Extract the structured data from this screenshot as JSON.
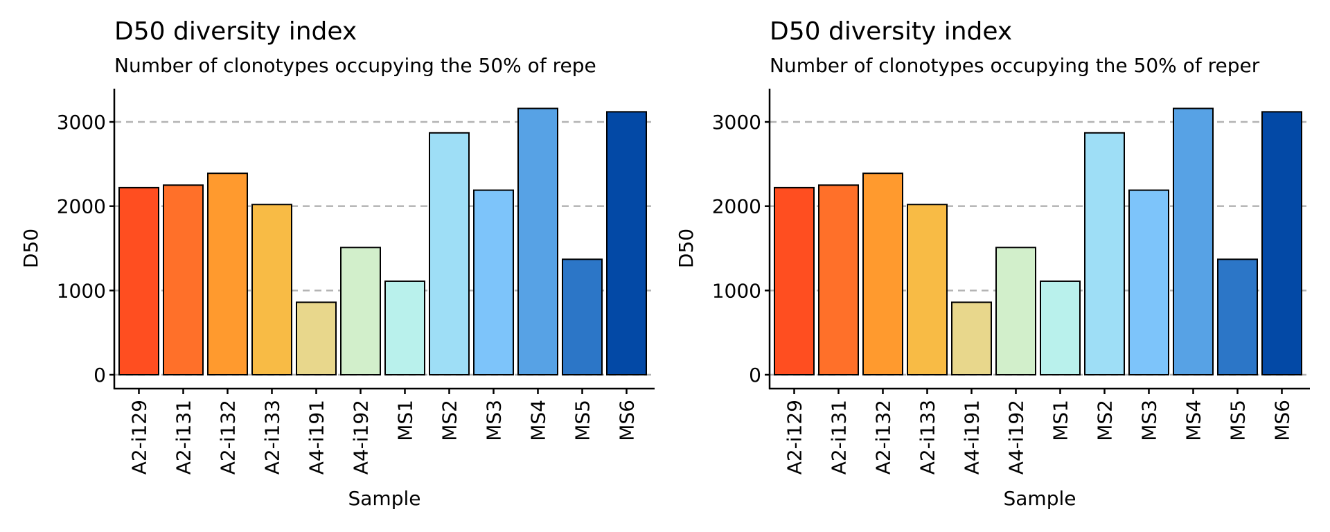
{
  "chart_data": [
    {
      "type": "bar",
      "title": "D50 diversity index",
      "subtitle": "Number of clonotypes occupying the 50% of repe",
      "xlabel": "Sample",
      "ylabel": "D50",
      "categories": [
        "A2-i129",
        "A2-i131",
        "A2-i132",
        "A2-i133",
        "A4-i191",
        "A4-i192",
        "MS1",
        "MS2",
        "MS3",
        "MS4",
        "MS5",
        "MS6"
      ],
      "values": [
        2220,
        2250,
        2390,
        2020,
        860,
        1510,
        1110,
        2870,
        2190,
        3160,
        1370,
        3120
      ],
      "colors": [
        "#FF4E20",
        "#FF7029",
        "#FF9A2E",
        "#F8BB45",
        "#E8D78C",
        "#D2EFCB",
        "#B9F1EC",
        "#9EDEF6",
        "#7DC4FA",
        "#57A2E5",
        "#2C76C7",
        "#0349A6"
      ],
      "yticks": [
        0,
        1000,
        2000,
        3000
      ],
      "ylim": [
        -150,
        3320
      ],
      "grid": "horizontal-dashed",
      "legend": "none"
    },
    {
      "type": "bar",
      "title": "D50 diversity index",
      "subtitle": "Number of clonotypes occupying the 50% of reper",
      "xlabel": "Sample",
      "ylabel": "D50",
      "categories": [
        "A2-i129",
        "A2-i131",
        "A2-i132",
        "A2-i133",
        "A4-i191",
        "A4-i192",
        "MS1",
        "MS2",
        "MS3",
        "MS4",
        "MS5",
        "MS6"
      ],
      "values": [
        2220,
        2250,
        2390,
        2020,
        860,
        1510,
        1110,
        2870,
        2190,
        3160,
        1370,
        3120
      ],
      "colors": [
        "#FF4E20",
        "#FF7029",
        "#FF9A2E",
        "#F8BB45",
        "#E8D78C",
        "#D2EFCB",
        "#B9F1EC",
        "#9EDEF6",
        "#7DC4FA",
        "#57A2E5",
        "#2C76C7",
        "#0349A6"
      ],
      "yticks": [
        0,
        1000,
        2000,
        3000
      ],
      "ylim": [
        -150,
        3320
      ],
      "grid": "horizontal-dashed",
      "legend": "none"
    }
  ]
}
